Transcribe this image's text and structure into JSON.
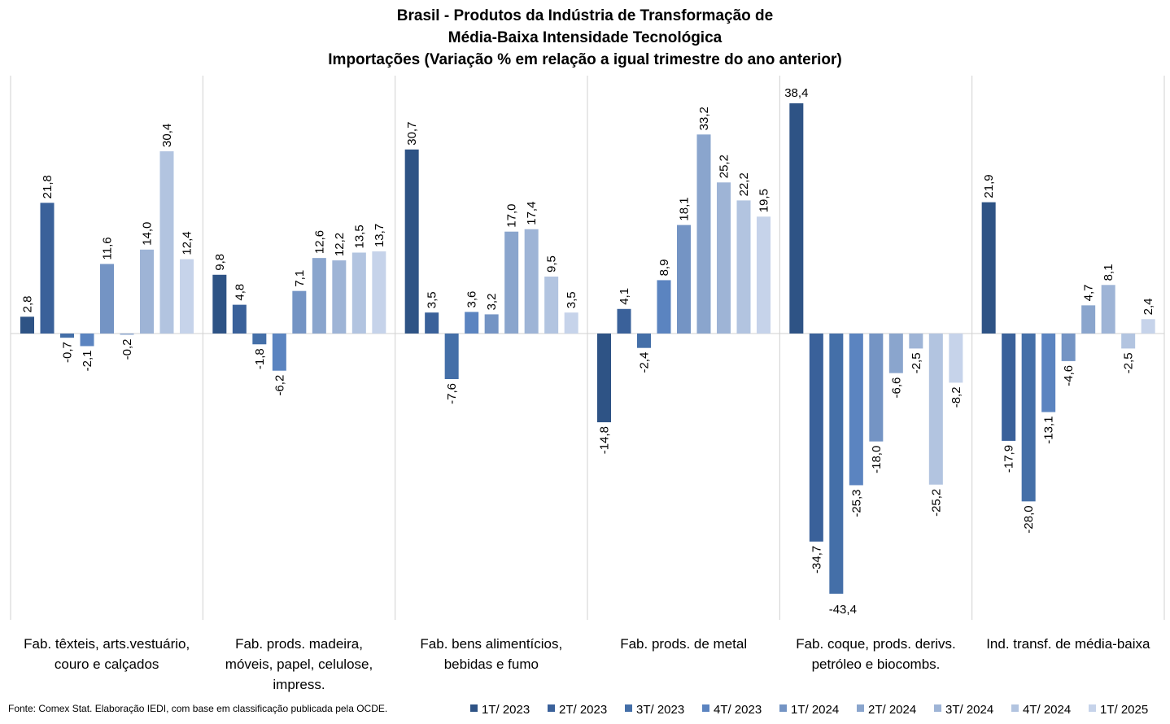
{
  "chart_data": {
    "type": "bar",
    "title": [
      "Brasil - Produtos da Indústria de Transformação de",
      "Média-Baixa Intensidade Tecnológica",
      "Importações (Variação % em relação a igual trimestre do ano anterior)"
    ],
    "categories": [
      [
        "Fab. têxteis, arts.vestuário,",
        "couro e calçados"
      ],
      [
        "Fab. prods. madeira,",
        "móveis, papel, celulose,",
        "impress."
      ],
      [
        "Fab. bens alimentícios,",
        "bebidas e fumo"
      ],
      [
        "Fab. prods. de metal"
      ],
      [
        "Fab. coque, prods. derivs.",
        "petróleo e biocombs."
      ],
      [
        "Ind. transf. de média-baixa"
      ]
    ],
    "series": [
      {
        "name": "1T/ 2023",
        "color": "#2e5385",
        "values": [
          2.8,
          9.8,
          30.7,
          -14.8,
          38.4,
          21.9
        ]
      },
      {
        "name": "2T/ 2023",
        "color": "#3a619a",
        "values": [
          21.8,
          4.8,
          3.5,
          4.1,
          -34.7,
          -17.9
        ]
      },
      {
        "name": "3T/ 2023",
        "color": "#446fa8",
        "values": [
          -0.7,
          -1.8,
          -7.6,
          -2.4,
          -43.4,
          -28.0
        ]
      },
      {
        "name": "4T/ 2023",
        "color": "#5b84c0",
        "values": [
          -2.1,
          -6.2,
          3.6,
          8.9,
          -25.3,
          -13.1
        ]
      },
      {
        "name": "1T/ 2024",
        "color": "#7494c4",
        "values": [
          11.6,
          7.1,
          3.2,
          18.1,
          -18.0,
          -4.6
        ]
      },
      {
        "name": "2T/ 2024",
        "color": "#8aa5cd",
        "values": [
          -0.2,
          12.6,
          17.0,
          33.2,
          -6.6,
          4.7
        ]
      },
      {
        "name": "3T/ 2024",
        "color": "#9eb4d6",
        "values": [
          14.0,
          12.2,
          17.4,
          25.2,
          -2.5,
          8.1
        ]
      },
      {
        "name": "4T/ 2024",
        "color": "#b2c4e0",
        "values": [
          30.4,
          13.5,
          9.5,
          22.2,
          -25.2,
          -2.5
        ]
      },
      {
        "name": "1T/ 2025",
        "color": "#c6d3ea",
        "values": [
          12.4,
          13.7,
          3.5,
          19.5,
          -8.2,
          2.4
        ]
      }
    ],
    "ylim": [
      -47,
      43
    ],
    "grid": false,
    "legend": "bottom",
    "xlabel": "",
    "ylabel": "",
    "source": "Fonte: Comex Stat. Elaboração IEDI, com base em classificação publicada pela OCDE."
  }
}
